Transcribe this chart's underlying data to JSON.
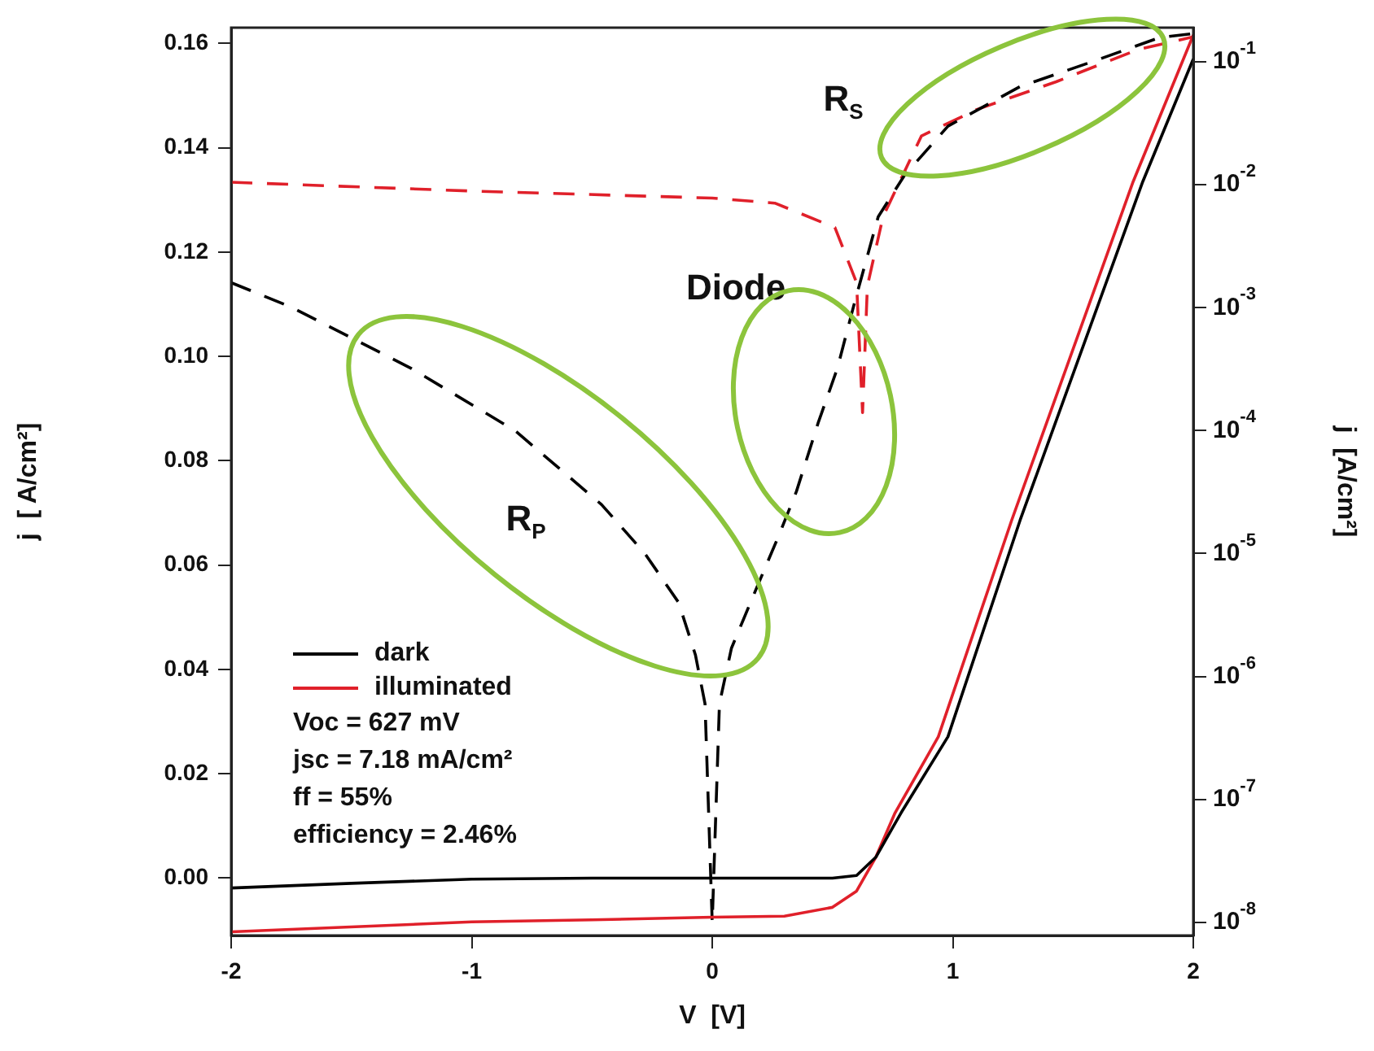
{
  "chart_data": {
    "type": "line",
    "xlabel": "V  [V]",
    "ylabel": "j  [ A/cm²]",
    "y2label": "j  [A/cm²]",
    "xlim": [
      -2,
      2
    ],
    "xticks": [
      -2,
      -1,
      0,
      1,
      2
    ],
    "ylim": [
      -0.011,
      0.163
    ],
    "yticks": [
      {
        "value": 0,
        "label": "0.00"
      },
      {
        "value": 0.02,
        "label": "0.02"
      },
      {
        "value": 0.04,
        "label": "0.04"
      },
      {
        "value": 0.06,
        "label": "0.06"
      },
      {
        "value": 0.08,
        "label": "0.08"
      },
      {
        "value": 0.1,
        "label": "0.10"
      },
      {
        "value": 0.12,
        "label": "0.12"
      },
      {
        "value": 0.14,
        "label": "0.14"
      },
      {
        "value": 0.16,
        "label": "0.16"
      }
    ],
    "y2lim": [
      7.8e-09,
      0.19
    ],
    "y2ticks": [
      {
        "value": 1e-08,
        "label": "10$^{-8}$"
      },
      {
        "value": 1e-07,
        "label": "10$^{-7}$"
      },
      {
        "value": 1e-06,
        "label": "10$^{-6}$"
      },
      {
        "value": 1e-05,
        "label": "10$^{-5}$"
      },
      {
        "value": 0.0001,
        "label": "10$^{-4}$"
      },
      {
        "value": 0.001,
        "label": "10$^{-3}$"
      },
      {
        "value": 0.01,
        "label": "10$^{-2}$"
      },
      {
        "value": 0.1,
        "label": "10$^{-1}$"
      }
    ],
    "log": "y2",
    "legend": "bottom left",
    "marker": "none",
    "series": [
      {
        "name": "dark",
        "color": "#000000",
        "line_style": "solid",
        "x": [
          -2,
          -1.5,
          -1,
          -0.5,
          0,
          0.3,
          0.5,
          0.6,
          0.68,
          0.785,
          0.98,
          1.28,
          1.79,
          2
        ],
        "values": [
          -0.0019,
          -0.001,
          -0.0002,
          0,
          0,
          0,
          0,
          0.0005,
          0.004,
          0.0125,
          0.0271,
          0.0686,
          0.1335,
          0.157
        ]
      },
      {
        "name": "illuminated",
        "color": "#e0202a",
        "line_style": "solid",
        "x": [
          -2,
          -1,
          -0.5,
          0,
          0.3,
          0.5,
          0.6,
          0.68,
          0.76,
          0.94,
          1.245,
          1.75,
          2
        ],
        "values": [
          -0.0103,
          -0.0084,
          -0.008,
          -0.0075,
          -0.0073,
          -0.0056,
          -0.0025,
          0.004,
          0.0125,
          0.0271,
          0.0686,
          0.1335,
          0.1616
        ]
      },
      {
        "color": "#000000",
        "line_style": "dashed",
        "axis": "y2",
        "x": [
          -2,
          -1.745,
          -1.25,
          -0.82,
          -0.46,
          -0.28,
          -0.14,
          -0.07,
          -0.03,
          0,
          0.03,
          0.08,
          0.18,
          0.28,
          0.35,
          0.44,
          0.52,
          0.59,
          0.69,
          0.8,
          0.98,
          1.28,
          1.59,
          1.86,
          2
        ],
        "values": [
          0.0016,
          0.001,
          0.00032,
          0.0001,
          2.5e-05,
          1e-05,
          4e-06,
          1.5e-06,
          6e-07,
          1e-08,
          6e-07,
          1.7e-06,
          5e-06,
          1.45e-05,
          3.2e-05,
          0.000115,
          0.00032,
          0.00107,
          0.0055,
          0.012,
          0.03,
          0.063,
          0.102,
          0.158,
          0.17
        ]
      },
      {
        "color": "#e0202a",
        "line_style": "dashed",
        "axis": "y2",
        "x": [
          -2,
          -1,
          0,
          0.26,
          0.51,
          0.6,
          0.625,
          0.645,
          0.71,
          0.87,
          1.1,
          1.43,
          1.77,
          2
        ],
        "values": [
          0.0105,
          0.0089,
          0.0078,
          0.0071,
          0.0045,
          0.0016,
          0.00014,
          0.0015,
          0.0055,
          0.025,
          0.041,
          0.069,
          0.126,
          0.16
        ]
      }
    ],
    "annotations": [
      "Voc = 627 mV",
      "jsc = 7.18 mA/cm²",
      "ff = 55%",
      "efficiency = 2.46%",
      "R$_{P}$",
      "Diode",
      "R$_{S}$"
    ]
  }
}
